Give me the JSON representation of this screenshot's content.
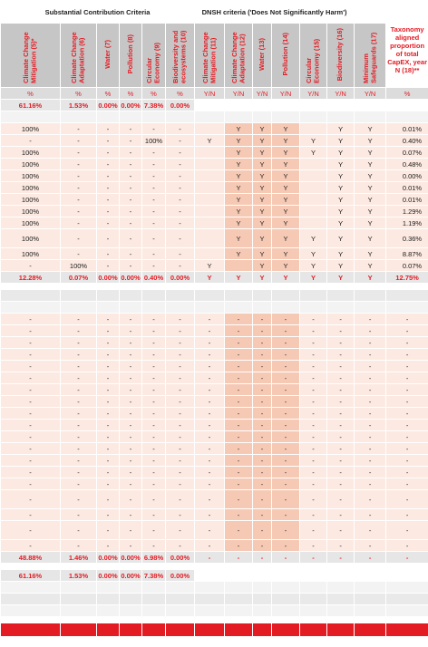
{
  "header": {
    "sc_title": "Substantial Contribution Criteria",
    "dnsh_title": "DNSH criteria ('Does Not Significantly Harm')",
    "columns": [
      "Climate Change Mitigation (5)*",
      "Climate Change Adaptation (6)",
      "Water (7)",
      "Pollution (8)",
      "Circular Economy (9)",
      "Biodiversity and ecosystems (10)",
      "Climate Change Mitigation (11)",
      "Climate Change Adaptation (12)",
      "Water (13)",
      "Pollution (14)",
      "Circular Economy (15)",
      "Biodiversity (16)",
      "Minimum Safeguards (17)"
    ],
    "last_column": "Taxonomy aligned proportion of total CapEX, year N (18)**"
  },
  "units": [
    "%",
    "%",
    "%",
    "%",
    "%",
    "%",
    "Y/N",
    "Y/N",
    "Y/N",
    "Y/N",
    "Y/N",
    "Y/N",
    "Y/N",
    "%"
  ],
  "eligible_total": [
    "61.16%",
    "1.53%",
    "0.00%",
    "0.00%",
    "7.38%",
    "0.00%"
  ],
  "aligned_rows": [
    [
      "100%",
      "-",
      "-",
      "-",
      "-",
      "-",
      "",
      "Y",
      "Y",
      "Y",
      "",
      "Y",
      "Y",
      "0.01%"
    ],
    [
      "-",
      "-",
      "-",
      "-",
      "100%",
      "-",
      "Y",
      "Y",
      "Y",
      "Y",
      "Y",
      "Y",
      "Y",
      "0.40%"
    ],
    [
      "100%",
      "-",
      "-",
      "-",
      "-",
      "-",
      "",
      "Y",
      "Y",
      "Y",
      "Y",
      "Y",
      "Y",
      "0.07%"
    ],
    [
      "100%",
      "-",
      "-",
      "-",
      "-",
      "-",
      "",
      "Y",
      "Y",
      "Y",
      "",
      "Y",
      "Y",
      "0.48%"
    ],
    [
      "100%",
      "-",
      "-",
      "-",
      "-",
      "-",
      "",
      "Y",
      "Y",
      "Y",
      "",
      "Y",
      "Y",
      "0.00%"
    ],
    [
      "100%",
      "-",
      "-",
      "-",
      "-",
      "-",
      "",
      "Y",
      "Y",
      "Y",
      "",
      "Y",
      "Y",
      "0.01%"
    ],
    [
      "100%",
      "-",
      "-",
      "-",
      "-",
      "-",
      "",
      "Y",
      "Y",
      "Y",
      "",
      "Y",
      "Y",
      "0.01%"
    ],
    [
      "100%",
      "-",
      "-",
      "-",
      "-",
      "-",
      "",
      "Y",
      "Y",
      "Y",
      "",
      "Y",
      "Y",
      "1.29%"
    ],
    [
      "100%",
      "-",
      "-",
      "-",
      "-",
      "-",
      "",
      "Y",
      "Y",
      "Y",
      "",
      "Y",
      "Y",
      "1.19%"
    ],
    [
      "100%",
      "-",
      "-",
      "-",
      "-",
      "-",
      "",
      "Y",
      "Y",
      "Y",
      "Y",
      "Y",
      "Y",
      "0.36%"
    ],
    [
      "100%",
      "-",
      "-",
      "-",
      "-",
      "-",
      "",
      "Y",
      "Y",
      "Y",
      "Y",
      "Y",
      "Y",
      "8.87%"
    ],
    [
      "-",
      "100%",
      "-",
      "-",
      "-",
      "-",
      "Y",
      "",
      "Y",
      "Y",
      "Y",
      "Y",
      "Y",
      "0.07%"
    ]
  ],
  "aligned_total": [
    "12.28%",
    "0.07%",
    "0.00%",
    "0.00%",
    "0.40%",
    "0.00%",
    "Y",
    "Y",
    "Y",
    "Y",
    "Y",
    "Y",
    "Y",
    "12.75%"
  ],
  "non_aligned_rows": [
    [
      "-",
      "-",
      "-",
      "-",
      "-",
      "-",
      "-",
      "-",
      "-",
      "-",
      "-",
      "-",
      "-",
      "-"
    ],
    [
      "-",
      "-",
      "-",
      "-",
      "-",
      "-",
      "-",
      "-",
      "-",
      "-",
      "-",
      "-",
      "-",
      "-"
    ],
    [
      "-",
      "-",
      "-",
      "-",
      "-",
      "-",
      "-",
      "-",
      "-",
      "-",
      "-",
      "-",
      "-",
      "-"
    ],
    [
      "-",
      "-",
      "-",
      "-",
      "-",
      "-",
      "-",
      "-",
      "-",
      "-",
      "-",
      "-",
      "-",
      "-"
    ],
    [
      "-",
      "-",
      "-",
      "-",
      "-",
      "-",
      "-",
      "-",
      "-",
      "-",
      "-",
      "-",
      "-",
      "-"
    ],
    [
      "-",
      "-",
      "-",
      "-",
      "-",
      "-",
      "-",
      "-",
      "-",
      "-",
      "-",
      "-",
      "-",
      "-"
    ],
    [
      "-",
      "-",
      "-",
      "-",
      "-",
      "-",
      "-",
      "-",
      "-",
      "-",
      "-",
      "-",
      "-",
      "-"
    ],
    [
      "-",
      "-",
      "-",
      "-",
      "-",
      "-",
      "-",
      "-",
      "-",
      "-",
      "-",
      "-",
      "-",
      "-"
    ],
    [
      "-",
      "-",
      "-",
      "-",
      "-",
      "-",
      "-",
      "-",
      "-",
      "-",
      "-",
      "-",
      "-",
      "-"
    ],
    [
      "-",
      "-",
      "-",
      "-",
      "-",
      "-",
      "-",
      "-",
      "-",
      "-",
      "-",
      "-",
      "-",
      "-"
    ],
    [
      "-",
      "-",
      "-",
      "-",
      "-",
      "-",
      "-",
      "-",
      "-",
      "-",
      "-",
      "-",
      "-",
      "-"
    ],
    [
      "-",
      "-",
      "-",
      "-",
      "-",
      "-",
      "-",
      "-",
      "-",
      "-",
      "-",
      "-",
      "-",
      "-"
    ],
    [
      "-",
      "-",
      "-",
      "-",
      "-",
      "-",
      "-",
      "-",
      "-",
      "-",
      "-",
      "-",
      "-",
      "-"
    ],
    [
      "-",
      "-",
      "-",
      "-",
      "-",
      "-",
      "-",
      "-",
      "-",
      "-",
      "-",
      "-",
      "-",
      "-"
    ],
    [
      "-",
      "-",
      "-",
      "-",
      "-",
      "-",
      "-",
      "-",
      "-",
      "-",
      "-",
      "-",
      "-",
      "-"
    ],
    [
      "-",
      "-",
      "-",
      "-",
      "-",
      "-",
      "-",
      "-",
      "-",
      "-",
      "-",
      "-",
      "-",
      "-"
    ],
    [
      "-",
      "-",
      "-",
      "-",
      "-",
      "-",
      "-",
      "-",
      "-",
      "-",
      "-",
      "-",
      "-",
      "-"
    ],
    [
      "-",
      "-",
      "-",
      "-",
      "-",
      "-",
      "-",
      "-",
      "-",
      "-",
      "-",
      "-",
      "-",
      "-"
    ],
    [
      "-",
      "-",
      "-",
      "-",
      "-",
      "-",
      "-",
      "-",
      "-",
      "-",
      "-",
      "-",
      "-",
      "-"
    ]
  ],
  "non_aligned_total": [
    "48.88%",
    "1.46%",
    "0.00%",
    "0.00%",
    "6.98%",
    "0.00%",
    "-",
    "-",
    "-",
    "-",
    "-",
    "-",
    "-",
    "-"
  ],
  "grand_total": [
    "61.16%",
    "1.53%",
    "0.00%",
    "0.00%",
    "7.38%",
    "0.00%"
  ],
  "colors": {
    "accent_red": "#e31b23",
    "header_grey": "#c6c6c6",
    "light_pink": "#fce9e1",
    "dnsh_pink": "#f6c9b5"
  }
}
